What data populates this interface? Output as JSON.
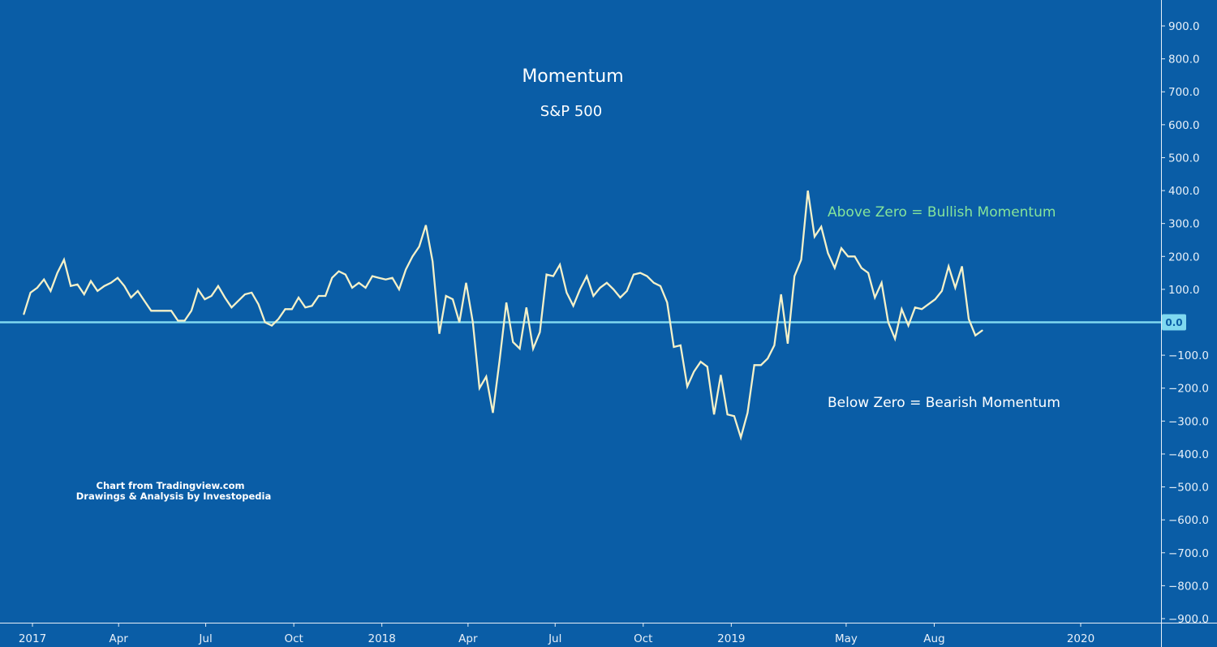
{
  "chart_data": {
    "type": "line",
    "title": "Momentum",
    "subtitle": "S&P 500",
    "annotations": {
      "bullish": "Above Zero = Bullish Momentum",
      "bearish": "Below Zero = Bearish Momentum"
    },
    "credit": {
      "line1": "Chart from Tradingview.com",
      "line2": "Drawings & Analysis by Investopedia"
    },
    "xlim": [
      "2017-01-01",
      "2020-03-31"
    ],
    "ylim": [
      -900,
      900
    ],
    "zero_line": {
      "value": 0,
      "label": "0.0"
    },
    "x_ticks": [
      {
        "date": "2017-01-01",
        "label": "2017"
      },
      {
        "date": "2017-04-01",
        "label": "Apr"
      },
      {
        "date": "2017-07-01",
        "label": "Jul"
      },
      {
        "date": "2017-10-01",
        "label": "Oct"
      },
      {
        "date": "2018-01-01",
        "label": "2018"
      },
      {
        "date": "2018-04-01",
        "label": "Apr"
      },
      {
        "date": "2018-07-01",
        "label": "Jul"
      },
      {
        "date": "2018-10-01",
        "label": "Oct"
      },
      {
        "date": "2019-01-01",
        "label": "2019"
      },
      {
        "date": "2019-05-01",
        "label": "May"
      },
      {
        "date": "2019-08-01",
        "label": "Aug"
      },
      {
        "date": "2020-01-01",
        "label": "2020"
      }
    ],
    "y_ticks": [
      {
        "value": 900,
        "label": "900.0"
      },
      {
        "value": 800,
        "label": "800.0"
      },
      {
        "value": 700,
        "label": "700.0"
      },
      {
        "value": 600,
        "label": "600.0"
      },
      {
        "value": 500,
        "label": "500.0"
      },
      {
        "value": 400,
        "label": "400.0"
      },
      {
        "value": 300,
        "label": "300.0"
      },
      {
        "value": 200,
        "label": "200.0"
      },
      {
        "value": 100,
        "label": "100.0"
      },
      {
        "value": -100,
        "label": "−100.0"
      },
      {
        "value": -200,
        "label": "−200.0"
      },
      {
        "value": -300,
        "label": "−300.0"
      },
      {
        "value": -400,
        "label": "−400.0"
      },
      {
        "value": -500,
        "label": "−500.0"
      },
      {
        "value": -600,
        "label": "−600.0"
      },
      {
        "value": -700,
        "label": "−700.0"
      },
      {
        "value": -800,
        "label": "−800.0"
      },
      {
        "value": -900,
        "label": "−900.0"
      }
    ],
    "series": [
      {
        "color": "#f4f1c9",
        "points": [
          [
            "2016-12-23",
            25
          ],
          [
            "2016-12-30",
            90
          ],
          [
            "2017-01-06",
            105
          ],
          [
            "2017-01-13",
            130
          ],
          [
            "2017-01-20",
            95
          ],
          [
            "2017-01-27",
            150
          ],
          [
            "2017-02-03",
            190
          ],
          [
            "2017-02-10",
            110
          ],
          [
            "2017-02-17",
            115
          ],
          [
            "2017-02-24",
            85
          ],
          [
            "2017-03-03",
            125
          ],
          [
            "2017-03-10",
            95
          ],
          [
            "2017-03-17",
            110
          ],
          [
            "2017-03-24",
            120
          ],
          [
            "2017-03-31",
            135
          ],
          [
            "2017-04-07",
            110
          ],
          [
            "2017-04-14",
            75
          ],
          [
            "2017-04-21",
            95
          ],
          [
            "2017-04-28",
            65
          ],
          [
            "2017-05-05",
            35
          ],
          [
            "2017-05-12",
            35
          ],
          [
            "2017-05-19",
            35
          ],
          [
            "2017-05-26",
            35
          ],
          [
            "2017-06-02",
            5
          ],
          [
            "2017-06-09",
            5
          ],
          [
            "2017-06-16",
            35
          ],
          [
            "2017-06-23",
            100
          ],
          [
            "2017-06-30",
            70
          ],
          [
            "2017-07-07",
            80
          ],
          [
            "2017-07-14",
            110
          ],
          [
            "2017-07-21",
            75
          ],
          [
            "2017-07-28",
            45
          ],
          [
            "2017-08-04",
            65
          ],
          [
            "2017-08-11",
            85
          ],
          [
            "2017-08-18",
            90
          ],
          [
            "2017-08-25",
            55
          ],
          [
            "2017-09-01",
            0
          ],
          [
            "2017-09-08",
            -10
          ],
          [
            "2017-09-15",
            10
          ],
          [
            "2017-09-22",
            40
          ],
          [
            "2017-09-29",
            40
          ],
          [
            "2017-10-06",
            75
          ],
          [
            "2017-10-13",
            45
          ],
          [
            "2017-10-20",
            50
          ],
          [
            "2017-10-27",
            80
          ],
          [
            "2017-11-03",
            80
          ],
          [
            "2017-11-10",
            135
          ],
          [
            "2017-11-17",
            155
          ],
          [
            "2017-11-24",
            145
          ],
          [
            "2017-12-01",
            105
          ],
          [
            "2017-12-08",
            120
          ],
          [
            "2017-12-15",
            105
          ],
          [
            "2017-12-22",
            140
          ],
          [
            "2017-12-29",
            135
          ],
          [
            "2018-01-05",
            130
          ],
          [
            "2018-01-12",
            135
          ],
          [
            "2018-01-19",
            100
          ],
          [
            "2018-01-26",
            160
          ],
          [
            "2018-02-02",
            200
          ],
          [
            "2018-02-09",
            230
          ],
          [
            "2018-02-16",
            295
          ],
          [
            "2018-02-23",
            185
          ],
          [
            "2018-03-02",
            -35
          ],
          [
            "2018-03-09",
            80
          ],
          [
            "2018-03-16",
            70
          ],
          [
            "2018-03-23",
            0
          ],
          [
            "2018-03-30",
            120
          ],
          [
            "2018-04-06",
            0
          ],
          [
            "2018-04-13",
            -200
          ],
          [
            "2018-04-20",
            -165
          ],
          [
            "2018-04-27",
            -275
          ],
          [
            "2018-05-04",
            -115
          ],
          [
            "2018-05-11",
            60
          ],
          [
            "2018-05-18",
            -60
          ],
          [
            "2018-05-25",
            -80
          ],
          [
            "2018-06-01",
            45
          ],
          [
            "2018-06-08",
            -80
          ],
          [
            "2018-06-15",
            -30
          ],
          [
            "2018-06-22",
            145
          ],
          [
            "2018-06-29",
            140
          ],
          [
            "2018-07-06",
            175
          ],
          [
            "2018-07-13",
            90
          ],
          [
            "2018-07-20",
            50
          ],
          [
            "2018-07-27",
            100
          ],
          [
            "2018-08-03",
            140
          ],
          [
            "2018-08-10",
            80
          ],
          [
            "2018-08-17",
            105
          ],
          [
            "2018-08-24",
            120
          ],
          [
            "2018-08-31",
            100
          ],
          [
            "2018-09-07",
            75
          ],
          [
            "2018-09-14",
            95
          ],
          [
            "2018-09-21",
            145
          ],
          [
            "2018-09-28",
            150
          ],
          [
            "2018-10-05",
            140
          ],
          [
            "2018-10-12",
            120
          ],
          [
            "2018-10-19",
            110
          ],
          [
            "2018-10-26",
            60
          ],
          [
            "2018-11-02",
            -75
          ],
          [
            "2018-11-09",
            -70
          ],
          [
            "2018-11-16",
            -195
          ],
          [
            "2018-11-23",
            -150
          ],
          [
            "2018-11-30",
            -120
          ],
          [
            "2018-12-07",
            -135
          ],
          [
            "2018-12-14",
            -280
          ],
          [
            "2018-12-21",
            -160
          ],
          [
            "2018-12-28",
            -280
          ],
          [
            "2019-01-04",
            -285
          ],
          [
            "2019-01-11",
            -350
          ],
          [
            "2019-01-18",
            -275
          ],
          [
            "2019-01-25",
            -130
          ],
          [
            "2019-02-01",
            -130
          ],
          [
            "2019-02-08",
            -110
          ],
          [
            "2019-02-15",
            -70
          ],
          [
            "2019-02-22",
            85
          ],
          [
            "2019-03-01",
            -65
          ],
          [
            "2019-03-08",
            140
          ],
          [
            "2019-03-15",
            190
          ],
          [
            "2019-03-22",
            400
          ],
          [
            "2019-03-29",
            260
          ],
          [
            "2019-04-05",
            290
          ],
          [
            "2019-04-12",
            210
          ],
          [
            "2019-04-19",
            165
          ],
          [
            "2019-04-26",
            225
          ],
          [
            "2019-05-03",
            200
          ],
          [
            "2019-05-10",
            200
          ],
          [
            "2019-05-17",
            165
          ],
          [
            "2019-05-24",
            150
          ],
          [
            "2019-05-31",
            75
          ],
          [
            "2019-06-07",
            120
          ],
          [
            "2019-06-14",
            0
          ],
          [
            "2019-06-21",
            -50
          ],
          [
            "2019-06-28",
            40
          ],
          [
            "2019-07-05",
            -10
          ],
          [
            "2019-07-12",
            45
          ],
          [
            "2019-07-19",
            40
          ],
          [
            "2019-07-26",
            55
          ],
          [
            "2019-08-02",
            70
          ],
          [
            "2019-08-09",
            95
          ],
          [
            "2019-08-16",
            170
          ],
          [
            "2019-08-23",
            105
          ],
          [
            "2019-08-30",
            170
          ],
          [
            "2019-09-06",
            10
          ],
          [
            "2019-09-13",
            -40
          ],
          [
            "2019-09-20",
            -25
          ]
        ]
      }
    ],
    "zero_line_color": "#7fd8f0",
    "background_color": "#0a5da6",
    "grid": false,
    "legend": "none"
  }
}
